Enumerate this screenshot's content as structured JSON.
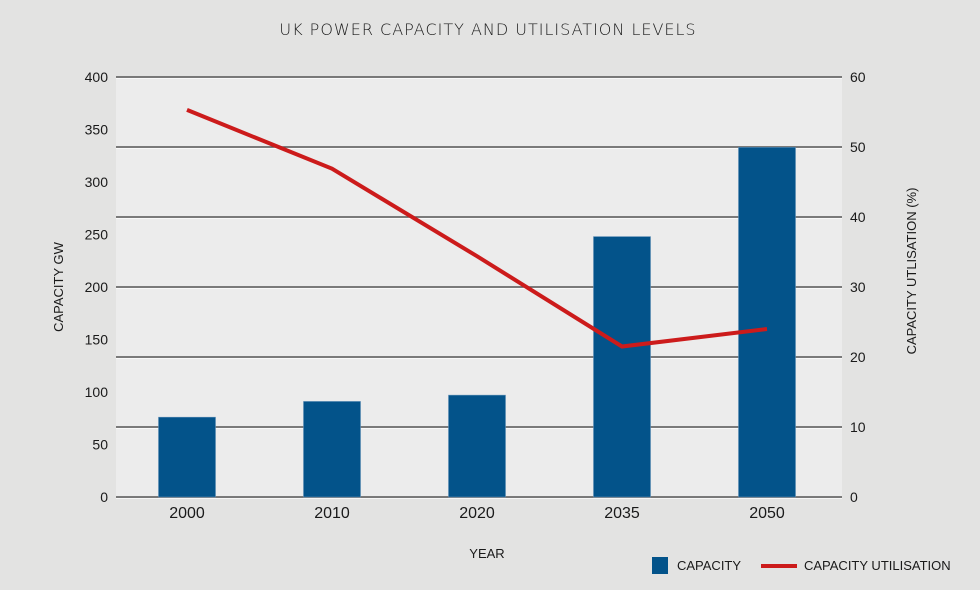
{
  "chart_data": {
    "type": "bar",
    "title": "UK POWER CAPACITY AND UTILISATION LEVELS",
    "xlabel": "YEAR",
    "ylabel": "CAPACITY GW",
    "ylabel_right": "CAPACITY UTLISATION (%)",
    "categories": [
      "2000",
      "2010",
      "2020",
      "2035",
      "2050"
    ],
    "ylim": [
      0,
      400
    ],
    "ylim_right": [
      0,
      60
    ],
    "yticks": [
      0,
      50,
      100,
      150,
      200,
      250,
      300,
      350,
      400
    ],
    "yticks_right": [
      0,
      10,
      20,
      30,
      40,
      50,
      60
    ],
    "grid": true,
    "legend_position": "bottom-right",
    "series": [
      {
        "name": "CAPACITY",
        "type": "bar",
        "axis": "left",
        "color": "#03538a",
        "values": [
          76,
          91,
          97,
          248,
          333
        ]
      },
      {
        "name": "CAPACITY UTILISATION",
        "type": "line",
        "axis": "right",
        "color": "#cc1b1b",
        "values": [
          55.3,
          46.9,
          34.4,
          21.5,
          24
        ]
      }
    ]
  },
  "colors": {
    "background": "#e3e3e2",
    "plot_background": "#ececec",
    "gridline": "#555555"
  }
}
